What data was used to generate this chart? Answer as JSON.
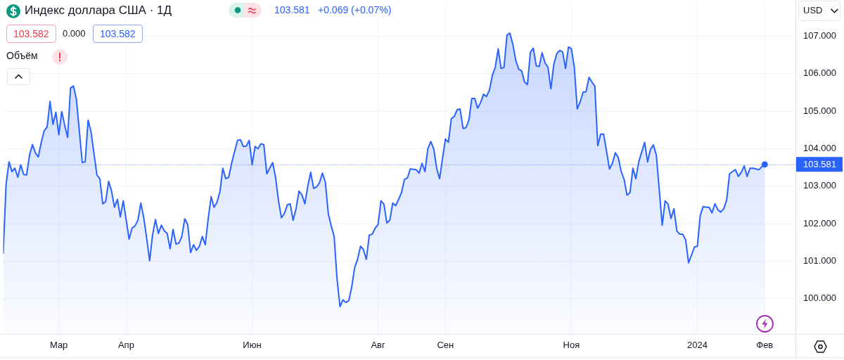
{
  "chart_data": {
    "type": "area",
    "title": "Индекс доллара США · 1Д",
    "annotations": [
      "103.581",
      "+0.069 (+0.07%)",
      "103.582",
      "0.000",
      "103.582",
      "Объём",
      "USD"
    ],
    "categories": [
      null,
      null,
      null,
      null,
      null,
      null,
      null,
      null,
      null,
      null,
      null,
      null,
      null,
      null,
      null,
      null,
      null,
      null,
      null,
      "Мар",
      null,
      null,
      null,
      null,
      null,
      null,
      null,
      null,
      null,
      null,
      null,
      null,
      null,
      null,
      null,
      null,
      null,
      null,
      null,
      null,
      null,
      null,
      "Апр",
      null,
      null,
      null,
      null,
      null,
      null,
      null,
      null,
      null,
      null,
      null,
      null,
      null,
      null,
      null,
      null,
      null,
      null,
      null,
      null,
      null,
      null,
      null,
      null,
      null,
      null,
      null,
      null,
      null,
      null,
      null,
      null,
      null,
      null,
      null,
      null,
      null,
      null,
      null,
      null,
      null,
      null,
      "Июн",
      null,
      null,
      null,
      null,
      null,
      null,
      null,
      null,
      null,
      null,
      null,
      null,
      null,
      null,
      null,
      null,
      null,
      null,
      null,
      null,
      null,
      null,
      null,
      null,
      null,
      null,
      null,
      null,
      null,
      null,
      null,
      null,
      null,
      null,
      null,
      null,
      null,
      null,
      null,
      null,
      null,
      null,
      "Авг",
      null,
      null,
      null,
      null,
      null,
      null,
      null,
      null,
      null,
      null,
      null,
      null,
      null,
      null,
      null,
      null,
      null,
      null,
      null,
      null,
      null,
      null,
      "Сен",
      null,
      null,
      null,
      null,
      null,
      null,
      null,
      null,
      null,
      null,
      null,
      null,
      null,
      null,
      null,
      null,
      null,
      null,
      null,
      null,
      null,
      null,
      null,
      null,
      null,
      null,
      null,
      null,
      null,
      null,
      null,
      null,
      null,
      null,
      null,
      null,
      null,
      null,
      null,
      null,
      null,
      null,
      "Ноя",
      null,
      null,
      null,
      null,
      null,
      null,
      null,
      null,
      null,
      null,
      null,
      null,
      null,
      null,
      null,
      null,
      null,
      null,
      null,
      null,
      null,
      null,
      null,
      null,
      null,
      null,
      null,
      null,
      null,
      null,
      null,
      null,
      null,
      null,
      null,
      null,
      null,
      null,
      null,
      null,
      null,
      null,
      "2024",
      null,
      null,
      null,
      null,
      null,
      null,
      null,
      null,
      null,
      null,
      null,
      null,
      null,
      null,
      null,
      null,
      null,
      null,
      null,
      null,
      null,
      null,
      "Фев"
    ],
    "series": [
      {
        "color": "#2962ff",
        "values": [
          101.2,
          103.05,
          103.65,
          103.39,
          103.48,
          103.24,
          103.57,
          103.31,
          103.3,
          103.83,
          104.11,
          103.89,
          103.78,
          104.17,
          104.48,
          104.58,
          105.26,
          104.65,
          104.97,
          104.37,
          104.99,
          104.63,
          104.3,
          105.62,
          105.67,
          105.32,
          104.48,
          103.63,
          103.65,
          104.76,
          104.45,
          103.87,
          103.3,
          103.2,
          102.53,
          102.59,
          103.13,
          102.87,
          102.44,
          102.65,
          102.18,
          102.61,
          102.1,
          101.59,
          101.88,
          101.94,
          102.09,
          102.55,
          102.16,
          101.61,
          101.01,
          101.7,
          102.11,
          101.74,
          101.96,
          101.81,
          101.74,
          101.33,
          101.85,
          101.46,
          101.48,
          101.66,
          102.13,
          101.98,
          101.23,
          101.44,
          101.29,
          101.4,
          101.66,
          101.44,
          102.13,
          102.72,
          102.44,
          102.57,
          102.85,
          103.48,
          103.2,
          103.24,
          103.61,
          103.92,
          104.22,
          104.24,
          104.06,
          104.07,
          104.22,
          103.57,
          104.06,
          104.0,
          104.13,
          104.11,
          103.33,
          103.48,
          103.63,
          103.24,
          102.61,
          102.16,
          102.27,
          102.5,
          102.53,
          102.09,
          102.4,
          102.87,
          102.77,
          102.53,
          103.0,
          103.37,
          102.94,
          102.98,
          103.09,
          103.35,
          103.11,
          102.27,
          101.94,
          101.66,
          100.51,
          99.79,
          99.97,
          99.9,
          99.95,
          100.31,
          100.83,
          101.05,
          101.4,
          101.31,
          101.05,
          101.7,
          101.72,
          101.88,
          101.98,
          102.61,
          102.52,
          102.02,
          102.09,
          102.55,
          102.48,
          102.65,
          102.83,
          103.18,
          103.22,
          103.46,
          103.45,
          103.44,
          103.35,
          103.61,
          103.39,
          104.0,
          104.19,
          104.0,
          103.48,
          103.2,
          103.74,
          104.26,
          104.17,
          104.8,
          104.86,
          105.04,
          105.06,
          104.54,
          104.56,
          104.76,
          105.34,
          105.34,
          105.08,
          105.23,
          105.45,
          105.39,
          105.56,
          105.95,
          106.17,
          106.66,
          106.14,
          106.17,
          107.03,
          107.08,
          106.79,
          106.36,
          106.12,
          106.08,
          105.78,
          105.71,
          106.58,
          106.68,
          106.21,
          106.19,
          106.56,
          106.29,
          106.17,
          105.6,
          106.25,
          106.53,
          106.62,
          106.58,
          106.14,
          106.71,
          106.67,
          106.17,
          105.06,
          105.25,
          105.51,
          105.52,
          105.9,
          105.78,
          105.67,
          104.08,
          104.39,
          104.39,
          103.93,
          103.46,
          103.61,
          103.89,
          103.76,
          103.39,
          103.18,
          102.76,
          102.83,
          103.48,
          103.2,
          103.65,
          103.91,
          104.17,
          103.65,
          103.98,
          104.1,
          103.83,
          102.9,
          101.96,
          102.61,
          102.52,
          102.14,
          102.4,
          101.81,
          101.72,
          101.72,
          101.57,
          100.96,
          101.16,
          101.38,
          101.4,
          102.22,
          102.46,
          102.44,
          102.44,
          102.29,
          102.53,
          102.37,
          102.31,
          102.4,
          102.63,
          103.33,
          103.39,
          103.44,
          103.26,
          103.37,
          103.54,
          103.26,
          103.48,
          103.48,
          103.46,
          103.44,
          103.52,
          103.58
        ]
      },
      {
        "type": "scatter",
        "x": [
          "Фев"
        ],
        "values": [
          103.58
        ],
        "color": "#2962ff",
        "marker": "circle"
      }
    ],
    "ylim": [
      99.06,
      107.88
    ],
    "yticks": [
      {
        "value": 100,
        "label": "100.000"
      },
      {
        "value": 101,
        "label": "101.000"
      },
      {
        "value": 102,
        "label": "102.000"
      },
      {
        "value": 103,
        "label": "103.000"
      },
      {
        "value": 104,
        "label": "104.000"
      },
      {
        "value": 105,
        "label": "105.000"
      },
      {
        "value": 106,
        "label": "106.000"
      },
      {
        "value": 107,
        "label": "107.000"
      }
    ],
    "grid": true,
    "marker": "none",
    "ref_lines": [
      {
        "axis": "y",
        "value": 103.581,
        "label": "103.581",
        "color": "#2962ff",
        "line_style": "dotted"
      }
    ]
  }
}
